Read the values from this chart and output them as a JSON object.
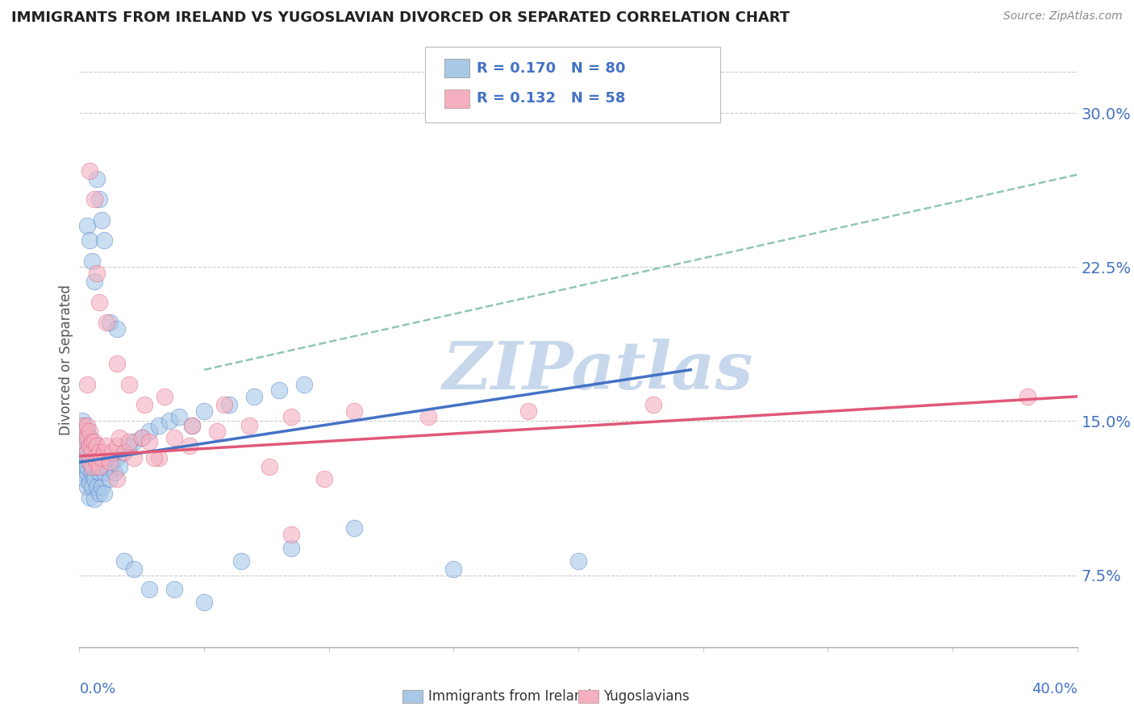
{
  "title": "IMMIGRANTS FROM IRELAND VS YUGOSLAVIAN DIVORCED OR SEPARATED CORRELATION CHART",
  "source_text": "Source: ZipAtlas.com",
  "ylabel_ticks": [
    "7.5%",
    "15.0%",
    "22.5%",
    "30.0%"
  ],
  "ylabel_label": "Divorced or Separated",
  "legend1_text": "R = 0.170   N = 80",
  "legend2_text": "R = 0.132   N = 58",
  "legend_bottom_1": "Immigrants from Ireland",
  "legend_bottom_2": "Yugoslavians",
  "blue_color": "#A8C8E8",
  "pink_color": "#F4B0C0",
  "blue_line_color": "#4472C4",
  "pink_line_color": "#E05878",
  "dashed_line_color": "#90C8B0",
  "axis_label_color": "#4472C4",
  "watermark_color": "#C8D8EC",
  "xmin": 0.0,
  "xmax": 0.4,
  "ymin": 0.04,
  "ymax": 0.32,
  "blue_scatter_x": [
    0.001,
    0.001,
    0.001,
    0.001,
    0.001,
    0.002,
    0.002,
    0.002,
    0.002,
    0.002,
    0.002,
    0.003,
    0.003,
    0.003,
    0.003,
    0.003,
    0.003,
    0.004,
    0.004,
    0.004,
    0.004,
    0.004,
    0.005,
    0.005,
    0.005,
    0.005,
    0.006,
    0.006,
    0.006,
    0.006,
    0.007,
    0.007,
    0.007,
    0.008,
    0.008,
    0.008,
    0.009,
    0.009,
    0.01,
    0.01,
    0.011,
    0.012,
    0.013,
    0.014,
    0.015,
    0.016,
    0.018,
    0.02,
    0.022,
    0.025,
    0.028,
    0.032,
    0.036,
    0.04,
    0.045,
    0.05,
    0.06,
    0.07,
    0.08,
    0.09,
    0.003,
    0.004,
    0.005,
    0.006,
    0.007,
    0.008,
    0.009,
    0.01,
    0.012,
    0.015,
    0.018,
    0.022,
    0.028,
    0.038,
    0.05,
    0.065,
    0.085,
    0.11,
    0.15,
    0.2
  ],
  "blue_scatter_y": [
    0.143,
    0.15,
    0.138,
    0.13,
    0.125,
    0.148,
    0.142,
    0.135,
    0.128,
    0.122,
    0.138,
    0.145,
    0.14,
    0.132,
    0.125,
    0.118,
    0.128,
    0.142,
    0.138,
    0.13,
    0.12,
    0.113,
    0.14,
    0.132,
    0.125,
    0.118,
    0.138,
    0.13,
    0.122,
    0.112,
    0.135,
    0.128,
    0.118,
    0.132,
    0.125,
    0.115,
    0.128,
    0.118,
    0.125,
    0.115,
    0.128,
    0.122,
    0.13,
    0.125,
    0.132,
    0.128,
    0.135,
    0.138,
    0.14,
    0.142,
    0.145,
    0.148,
    0.15,
    0.152,
    0.148,
    0.155,
    0.158,
    0.162,
    0.165,
    0.168,
    0.245,
    0.238,
    0.228,
    0.218,
    0.268,
    0.258,
    0.248,
    0.238,
    0.198,
    0.195,
    0.082,
    0.078,
    0.068,
    0.068,
    0.062,
    0.082,
    0.088,
    0.098,
    0.078,
    0.082
  ],
  "pink_scatter_x": [
    0.001,
    0.002,
    0.002,
    0.003,
    0.003,
    0.003,
    0.004,
    0.004,
    0.004,
    0.005,
    0.005,
    0.005,
    0.006,
    0.006,
    0.007,
    0.007,
    0.008,
    0.008,
    0.009,
    0.01,
    0.011,
    0.012,
    0.013,
    0.015,
    0.016,
    0.018,
    0.02,
    0.022,
    0.025,
    0.028,
    0.032,
    0.038,
    0.045,
    0.055,
    0.068,
    0.085,
    0.11,
    0.14,
    0.18,
    0.23,
    0.004,
    0.006,
    0.008,
    0.011,
    0.015,
    0.02,
    0.026,
    0.034,
    0.044,
    0.058,
    0.076,
    0.098,
    0.003,
    0.007,
    0.015,
    0.03,
    0.085,
    0.38
  ],
  "pink_scatter_y": [
    0.148,
    0.145,
    0.14,
    0.148,
    0.142,
    0.135,
    0.145,
    0.138,
    0.13,
    0.14,
    0.135,
    0.128,
    0.14,
    0.132,
    0.138,
    0.13,
    0.135,
    0.128,
    0.132,
    0.135,
    0.138,
    0.13,
    0.135,
    0.138,
    0.142,
    0.135,
    0.14,
    0.132,
    0.142,
    0.14,
    0.132,
    0.142,
    0.148,
    0.145,
    0.148,
    0.152,
    0.155,
    0.152,
    0.155,
    0.158,
    0.272,
    0.258,
    0.208,
    0.198,
    0.178,
    0.168,
    0.158,
    0.162,
    0.138,
    0.158,
    0.128,
    0.122,
    0.168,
    0.222,
    0.122,
    0.132,
    0.095,
    0.162
  ],
  "blue_trend_x": [
    0.0,
    0.245
  ],
  "blue_trend_y": [
    0.13,
    0.175
  ],
  "pink_trend_x": [
    0.0,
    0.4
  ],
  "pink_trend_y": [
    0.133,
    0.162
  ],
  "dashed_trend_x": [
    0.05,
    0.4
  ],
  "dashed_trend_y": [
    0.175,
    0.27
  ]
}
